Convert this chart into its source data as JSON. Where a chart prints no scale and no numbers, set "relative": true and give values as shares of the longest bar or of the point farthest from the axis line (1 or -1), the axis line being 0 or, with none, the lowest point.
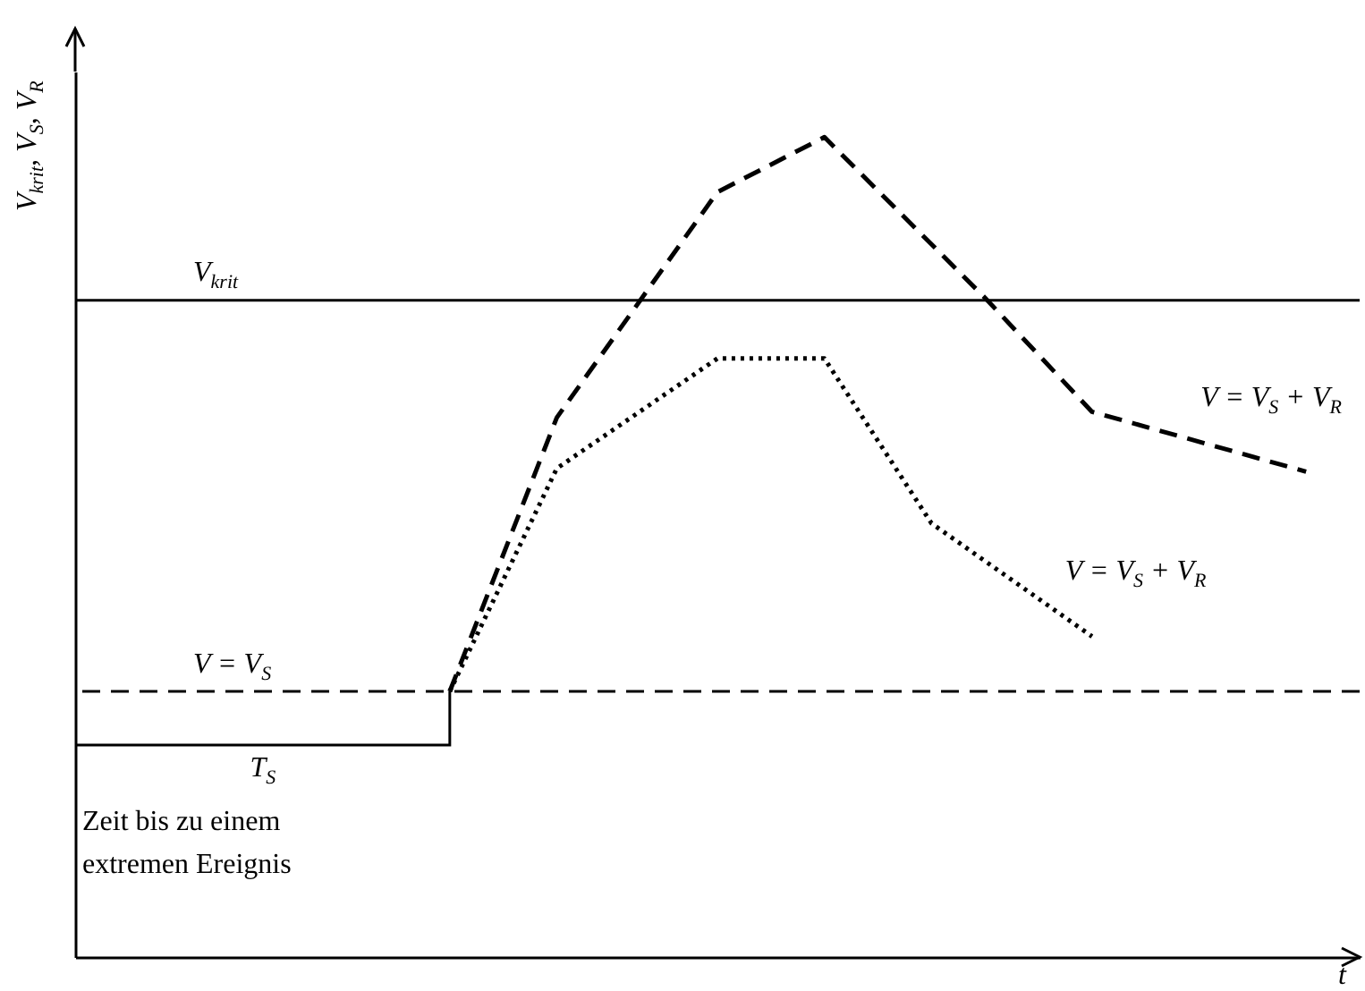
{
  "chart_data": {
    "type": "line",
    "relative": true,
    "xlabel": "t",
    "ylabel": "V$_{krit}$, V$_{S}$, V$_{R}$",
    "categories": [
      null,
      null,
      null,
      null,
      null,
      null,
      null,
      null,
      null,
      null,
      null,
      null,
      null,
      null,
      null,
      null,
      null,
      null,
      null,
      null,
      null,
      null,
      null,
      null,
      null
    ],
    "series": [
      {
        "name": "V = V$_{S}$ + V$_{R}$",
        "color": "#000000",
        "line_style": "dashed",
        "values": [
          null,
          null,
          null,
          null,
          null,
          null,
          null,
          0.324,
          null,
          0.658,
          null,
          null,
          0.933,
          null,
          1,
          null,
          null,
          0.804,
          null,
          0.665,
          null,
          null,
          null,
          0.592,
          null
        ]
      },
      {
        "name": "V = V$_{S}$ + V$_{R}$",
        "color": "#000000",
        "line_style": "dotted",
        "values": [
          null,
          null,
          null,
          null,
          null,
          null,
          null,
          0.324,
          null,
          0.596,
          null,
          null,
          0.73,
          null,
          0.73,
          null,
          0.529,
          null,
          null,
          0.391,
          null,
          null,
          null,
          null,
          null
        ]
      }
    ],
    "ref_lines": [
      {
        "axis": "y",
        "value": 0.801,
        "label": "V$_{krit}$",
        "line_style": "solid",
        "color": "#000000"
      },
      {
        "axis": "y",
        "value": 0.324,
        "label": "V = V$_{S}$",
        "line_style": "dashed",
        "color": "#000000"
      }
    ],
    "annotations": [
      "T$_{S}$",
      "Zeit bis zu einem extremen Ereignis"
    ]
  }
}
